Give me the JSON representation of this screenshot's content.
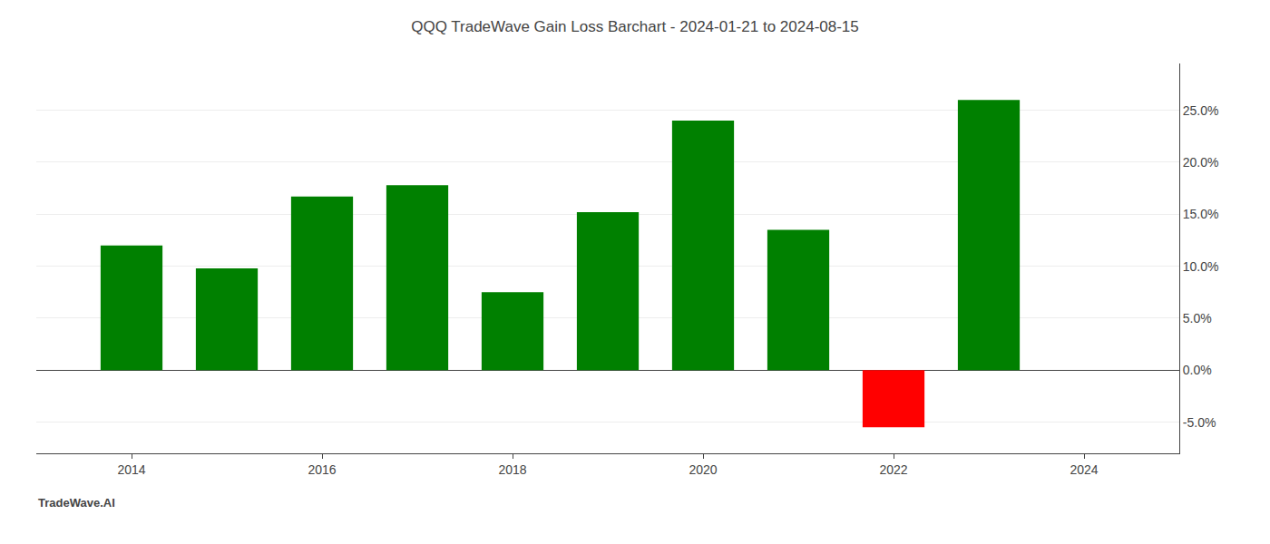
{
  "chart_data": {
    "type": "bar",
    "title": "QQQ TradeWave Gain Loss Barchart - 2024-01-21 to 2024-08-15",
    "annotations": [
      {
        "text": "TradeWave.AI"
      }
    ],
    "x": [
      2014,
      2015,
      2016,
      2017,
      2018,
      2019,
      2020,
      2021,
      2022,
      2023
    ],
    "values": [
      0.12,
      0.098,
      0.167,
      0.178,
      0.075,
      0.152,
      0.24,
      0.135,
      -0.055,
      0.26
    ],
    "colors": [
      "#008000",
      "#008000",
      "#008000",
      "#008000",
      "#008000",
      "#008000",
      "#008000",
      "#008000",
      "#ff0000",
      "#008000"
    ],
    "xlim": [
      2013.0,
      2025.0
    ],
    "xticks": [
      2014,
      2016,
      2018,
      2020,
      2022,
      2024
    ],
    "ylim": [
      -0.08,
      0.295
    ],
    "yticks": [
      {
        "value": -0.05,
        "label": "-5.0%"
      },
      {
        "value": 0.0,
        "label": "0.0%"
      },
      {
        "value": 0.05,
        "label": "5.0%"
      },
      {
        "value": 0.1,
        "label": "10.0%"
      },
      {
        "value": 0.15,
        "label": "15.0%"
      },
      {
        "value": 0.2,
        "label": "20.0%"
      },
      {
        "value": 0.25,
        "label": "25.0%"
      }
    ],
    "grid": true
  }
}
